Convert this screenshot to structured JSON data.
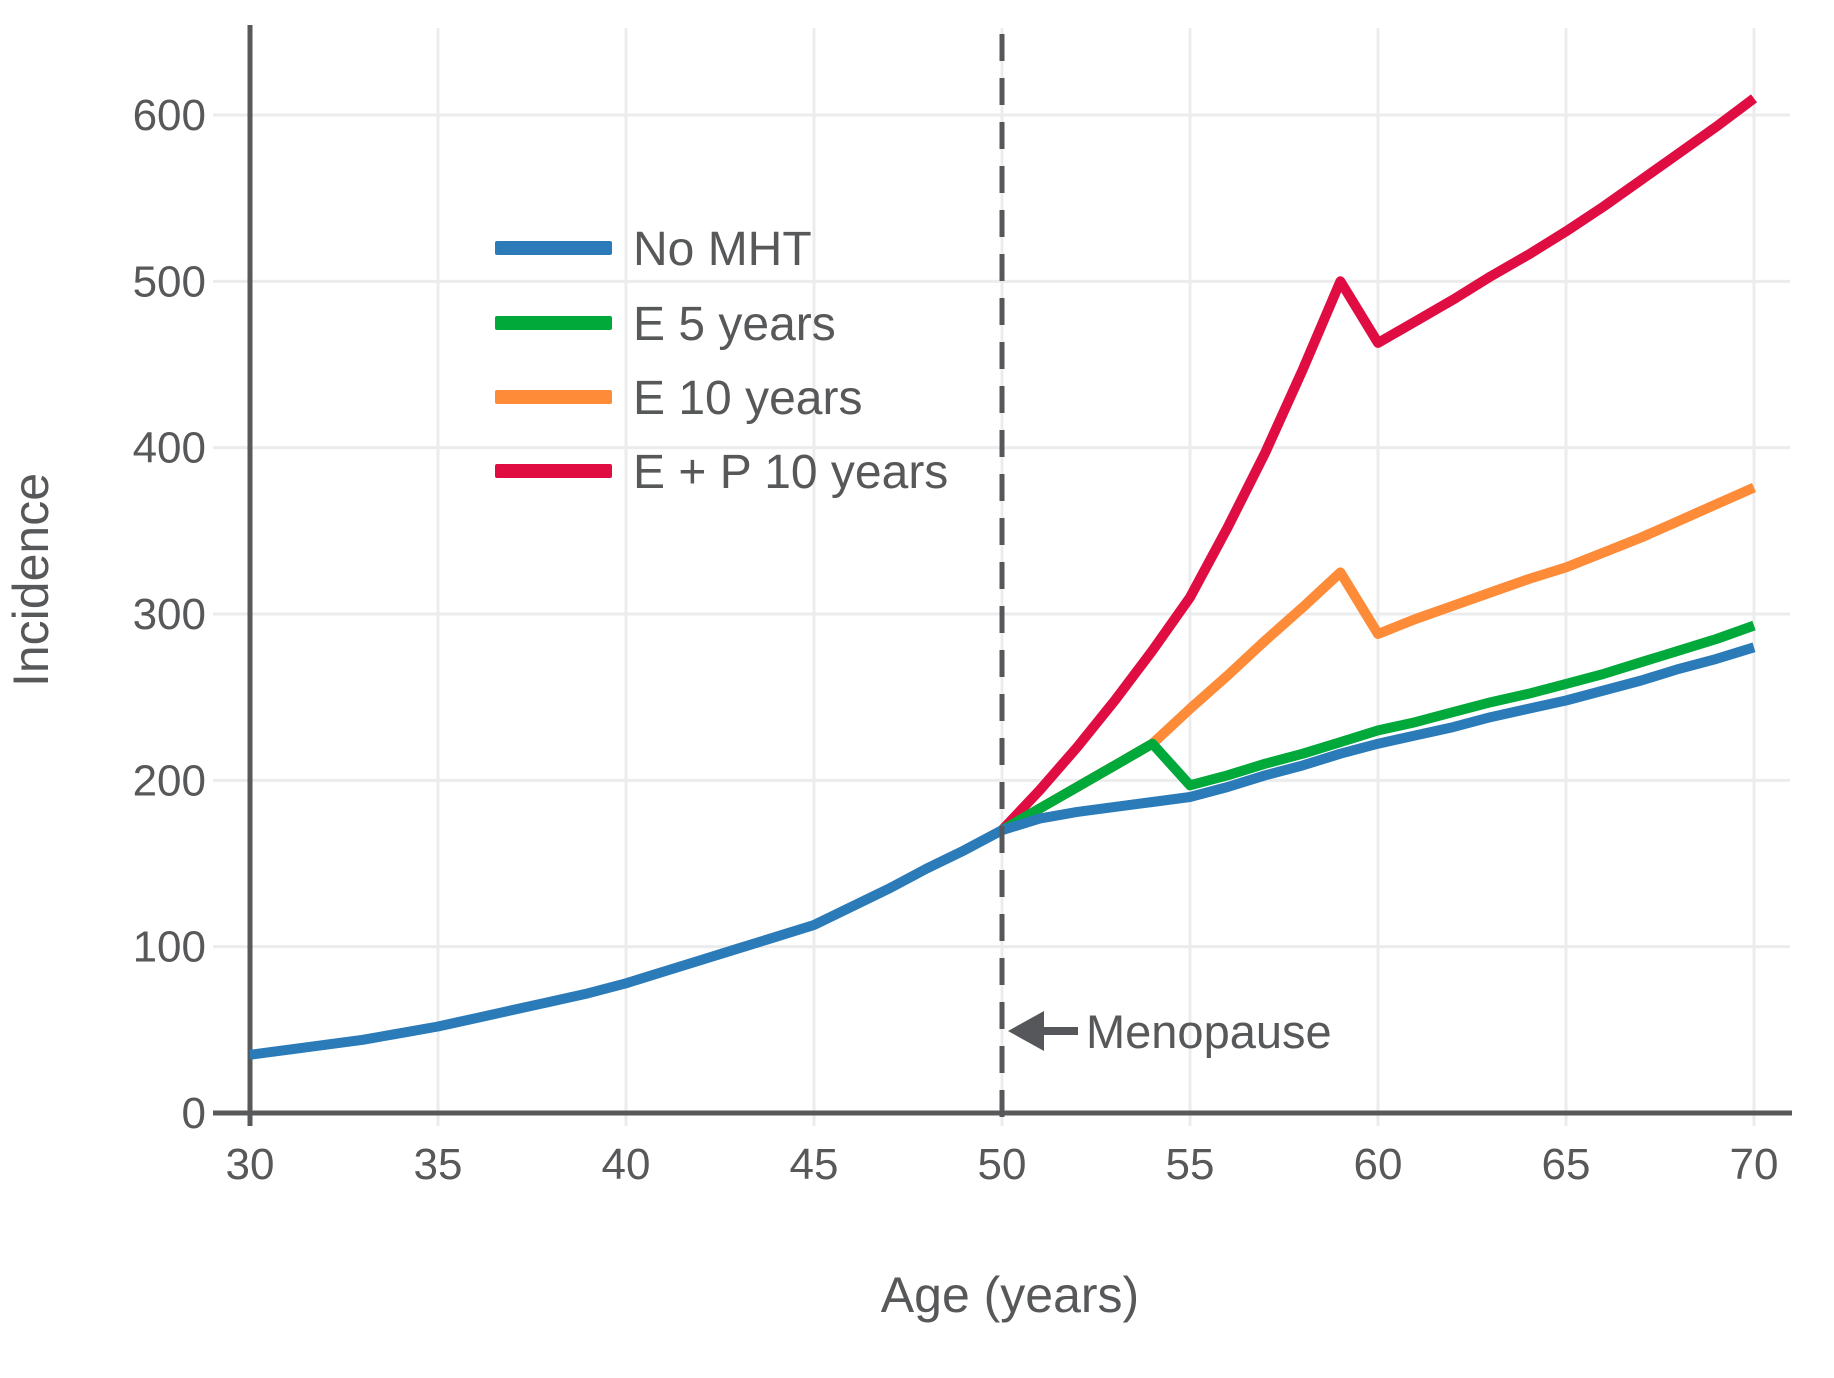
{
  "figure": {
    "background": "#ffffff",
    "text_color": "#57585a",
    "axis_color": "#58595b",
    "grid_color": "#ececec",
    "annotation_color": "#55575a"
  },
  "chart_data": {
    "type": "line",
    "title": "",
    "xlabel": "Age (years)",
    "ylabel": "Incidence",
    "xlim": [
      30,
      70
    ],
    "ylim": [
      0,
      650
    ],
    "xticks": [
      30,
      35,
      40,
      45,
      50,
      55,
      60,
      65,
      70
    ],
    "yticks": [
      0,
      100,
      200,
      300,
      400,
      500,
      600
    ],
    "grid": true,
    "legend_position": "upper-left-inside",
    "annotation": {
      "label": "Menopause",
      "x": 50,
      "arrow": "left",
      "y_at_arrow": 50
    },
    "series": [
      {
        "name": "No MHT",
        "color": "#2b7bb9",
        "x": [
          30,
          31,
          32,
          33,
          34,
          35,
          36,
          37,
          38,
          39,
          40,
          41,
          42,
          43,
          44,
          45,
          46,
          47,
          48,
          49,
          50,
          51,
          52,
          53,
          54,
          55,
          56,
          57,
          58,
          59,
          60,
          61,
          62,
          63,
          64,
          65,
          66,
          67,
          68,
          69,
          70
        ],
        "y": [
          35,
          38,
          41,
          44,
          48,
          52,
          57,
          62,
          67,
          72,
          78,
          85,
          92,
          99,
          106,
          113,
          124,
          135,
          147,
          158,
          170,
          177,
          181,
          184,
          187,
          190,
          196,
          203,
          209,
          216,
          222,
          227,
          232,
          238,
          243,
          248,
          254,
          260,
          267,
          273,
          280
        ]
      },
      {
        "name": "E 5 years",
        "color": "#00a93a",
        "x": [
          50,
          51,
          52,
          53,
          54,
          55,
          56,
          57,
          58,
          59,
          60,
          61,
          62,
          63,
          64,
          65,
          66,
          67,
          68,
          69,
          70
        ],
        "y": [
          170,
          183,
          196,
          209,
          222,
          197,
          203,
          210,
          216,
          223,
          230,
          235,
          241,
          247,
          252,
          258,
          264,
          271,
          278,
          285,
          293
        ]
      },
      {
        "name": "E 10 years",
        "color": "#fd8b38",
        "x": [
          50,
          51,
          52,
          53,
          54,
          55,
          56,
          57,
          58,
          59,
          60,
          61,
          62,
          63,
          64,
          65,
          66,
          67,
          68,
          69,
          70
        ],
        "y": [
          170,
          183,
          196,
          209,
          222,
          243,
          263,
          284,
          304,
          325,
          288,
          297,
          305,
          313,
          321,
          328,
          337,
          346,
          356,
          366,
          376
        ]
      },
      {
        "name": "E + P 10 years",
        "color": "#e00d43",
        "x": [
          50,
          51,
          52,
          53,
          54,
          55,
          56,
          57,
          58,
          59,
          60,
          61,
          62,
          63,
          64,
          65,
          66,
          67,
          68,
          69,
          70
        ],
        "y": [
          170,
          194,
          220,
          248,
          278,
          310,
          352,
          397,
          447,
          500,
          463,
          476,
          489,
          503,
          516,
          530,
          545,
          561,
          577,
          593,
          610
        ]
      }
    ]
  }
}
